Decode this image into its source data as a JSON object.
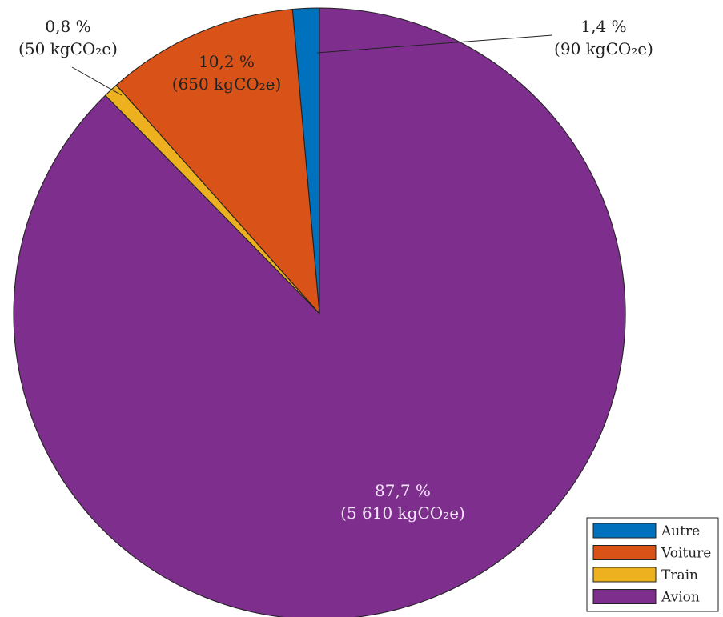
{
  "chart_data": {
    "type": "pie",
    "start": "top",
    "direction": "counterclockwise",
    "slices": [
      {
        "name": "Autre",
        "value": 90,
        "percent_label": "1,4 %",
        "value_label": "(90 kgCO₂e)",
        "color": "#0072BD"
      },
      {
        "name": "Voiture",
        "value": 650,
        "percent_label": "10,2 %",
        "value_label": "(650 kgCO₂e)",
        "color": "#D95319"
      },
      {
        "name": "Train",
        "value": 50,
        "percent_label": "0,8 %",
        "value_label": "(50 kgCO₂e)",
        "color": "#EDB120"
      },
      {
        "name": "Avion",
        "value": 5610,
        "percent_label": "87,7 %",
        "value_label": "(5 610 kgCO₂e)",
        "color": "#7E2F8E"
      }
    ],
    "legend": {
      "position": "bottom-right",
      "entries": [
        "Autre",
        "Voiture",
        "Train",
        "Avion"
      ]
    }
  }
}
